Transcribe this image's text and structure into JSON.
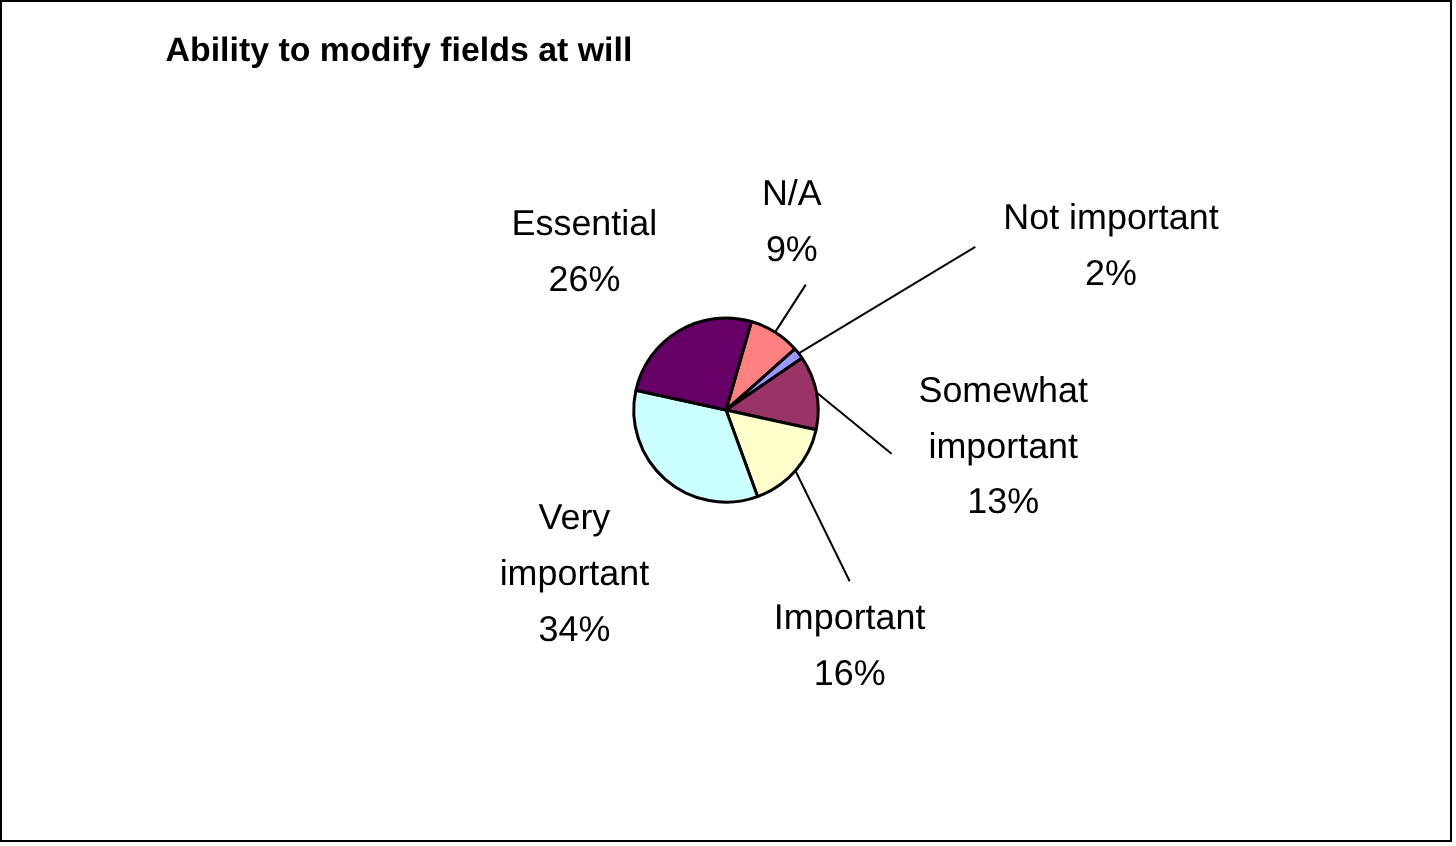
{
  "chart_data": {
    "type": "pie",
    "title": "Ability to modify fields at will",
    "categories": [
      "N/A",
      "Not important",
      "Somewhat important",
      "Important",
      "Very important",
      "Essential"
    ],
    "values": [
      9,
      2,
      13,
      16,
      34,
      26
    ],
    "colors": [
      "#ff8080",
      "#9999ff",
      "#993366",
      "#ffffcc",
      "#ccffff",
      "#660066"
    ],
    "value_labels": [
      "9%",
      "2%",
      "13%",
      "16%",
      "34%",
      "26%"
    ]
  }
}
